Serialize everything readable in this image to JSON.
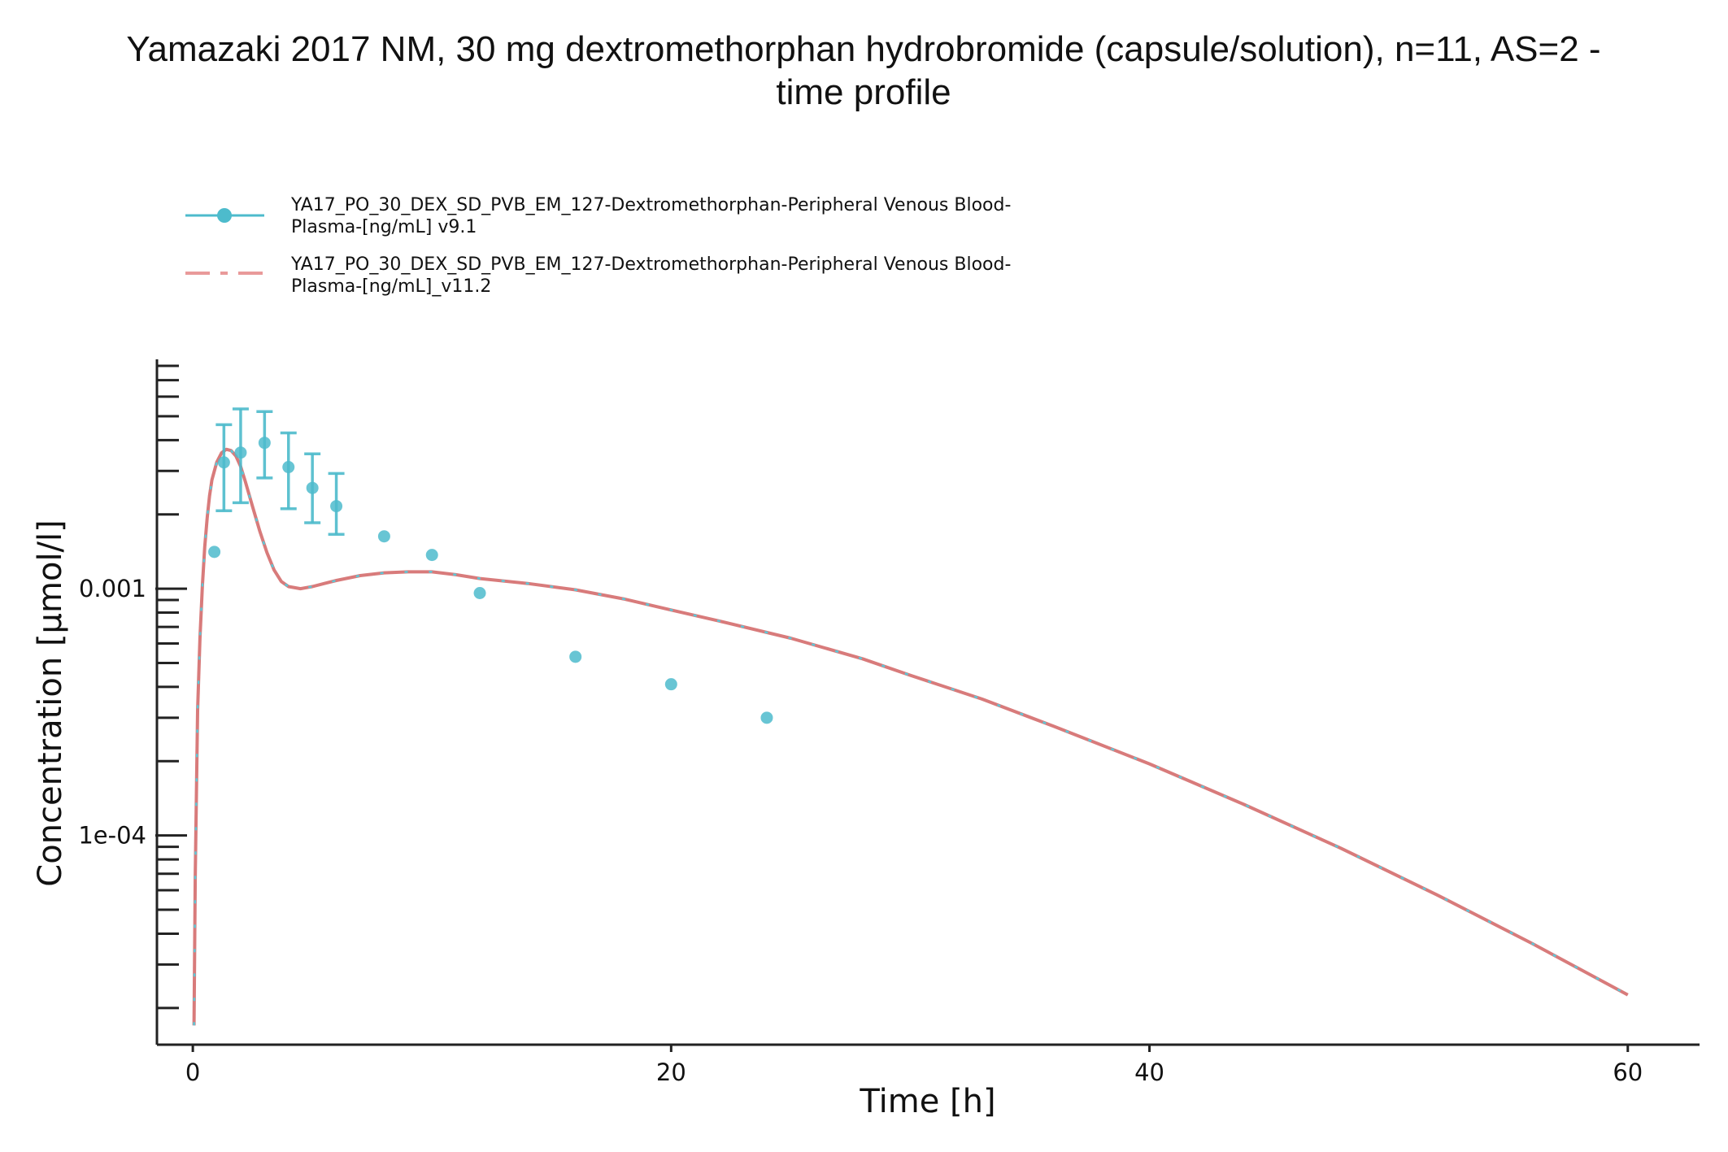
{
  "chart_data": {
    "type": "line",
    "title_lines": [
      "Yamazaki 2017 NM, 30 mg dextromethorphan hydrobromide (capsule/solution), n=11, AS=2 -",
      "time profile"
    ],
    "xlabel": "Time [h]",
    "ylabel": "Concentration [µmol/l]",
    "x_scale": "linear",
    "y_scale": "log",
    "xlim": [
      -1.5,
      63.0
    ],
    "ylim": [
      1.42e-05,
      0.0085
    ],
    "x_ticks": [
      0,
      20,
      40,
      60
    ],
    "x_tick_labels": [
      "0",
      "20",
      "40",
      "60"
    ],
    "y_major_ticks": [
      0.001,
      0.0001
    ],
    "y_tick_labels": [
      "0.001",
      "1e-04"
    ],
    "grid": false,
    "legend_position": "top-left",
    "colors": {
      "observed": "#4dbbcc",
      "simulated": "#d87b7b",
      "simulated_dash": "#5bc8d8"
    },
    "series": [
      {
        "name": "YA17_PO_30_DEX_SD_PVB_EM_127-Dextromethorphan-Peripheral Venous Blood-Plasma-[ng/mL] v9.1",
        "legend_lines": [
          "YA17_PO_30_DEX_SD_PVB_EM_127-Dextromethorphan-Peripheral Venous Blood-",
          "Plasma-[ng/mL] v9.1"
        ],
        "kind": "observed",
        "points": [
          {
            "x": 0.9,
            "y": 0.00141
          },
          {
            "x": 1.3,
            "y": 0.00325,
            "y_low": 0.00207,
            "y_high": 0.00462
          },
          {
            "x": 2.0,
            "y": 0.00356,
            "y_low": 0.00223,
            "y_high": 0.00535
          },
          {
            "x": 3.0,
            "y": 0.0039,
            "y_low": 0.00281,
            "y_high": 0.00522
          },
          {
            "x": 4.0,
            "y": 0.00311,
            "y_low": 0.00211,
            "y_high": 0.00428
          },
          {
            "x": 5.0,
            "y": 0.00256,
            "y_low": 0.00185,
            "y_high": 0.00352
          },
          {
            "x": 6.0,
            "y": 0.00216,
            "y_low": 0.00166,
            "y_high": 0.00293
          },
          {
            "x": 8.0,
            "y": 0.00163
          },
          {
            "x": 10.0,
            "y": 0.00137
          },
          {
            "x": 12.0,
            "y": 0.00096
          },
          {
            "x": 16.0,
            "y": 0.00053
          },
          {
            "x": 20.0,
            "y": 0.00041
          },
          {
            "x": 24.0,
            "y": 0.0003
          }
        ]
      },
      {
        "name": "YA17_PO_30_DEX_SD_PVB_EM_127-Dextromethorphan-Peripheral Venous Blood-Plasma-[ng/mL]_v11.2",
        "legend_lines": [
          "YA17_PO_30_DEX_SD_PVB_EM_127-Dextromethorphan-Peripheral Venous Blood-",
          "Plasma-[ng/mL]_v11.2"
        ],
        "kind": "simulated",
        "x": [
          0.05,
          0.1,
          0.2,
          0.3,
          0.4,
          0.5,
          0.6,
          0.7,
          0.8,
          1.0,
          1.2,
          1.4,
          1.6,
          1.8,
          2.0,
          2.2,
          2.5,
          2.8,
          3.1,
          3.4,
          3.7,
          4.0,
          4.5,
          5.0,
          5.5,
          6.0,
          7.0,
          8.0,
          9.0,
          10.0,
          11.0,
          12.0,
          14.0,
          16.0,
          18.0,
          20.0,
          22.0,
          25.0,
          28.0,
          30.0,
          33.0,
          36.0,
          40.0,
          44.0,
          48.0,
          52.0,
          56.0,
          60.0
        ],
        "y": [
          1.7e-05,
          6.8e-05,
          0.00032,
          0.00063,
          0.00103,
          0.00148,
          0.00194,
          0.00238,
          0.00276,
          0.00325,
          0.00355,
          0.00367,
          0.00363,
          0.00345,
          0.00313,
          0.00271,
          0.00215,
          0.00171,
          0.0014,
          0.00119,
          0.00107,
          0.00102,
          0.001,
          0.00102,
          0.00105,
          0.00108,
          0.00113,
          0.00116,
          0.00117,
          0.00117,
          0.00114,
          0.0011,
          0.00105,
          0.00099,
          0.00091,
          0.00082,
          0.00074,
          0.00063,
          0.00052,
          0.000446,
          0.000357,
          0.000277,
          0.000195,
          0.000133,
          8.88e-05,
          5.76e-05,
          3.65e-05,
          2.26e-05
        ]
      }
    ]
  }
}
